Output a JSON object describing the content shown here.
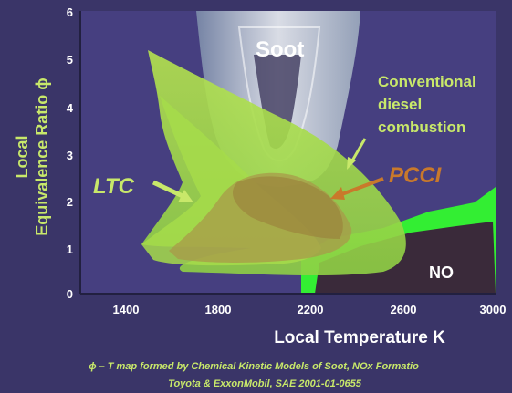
{
  "axes": {
    "xlabel": "Local Temperature K",
    "ylabel_line1": "Local",
    "ylabel_line2": "Equivalence Ratio ϕ",
    "x_ticks": [
      "1400",
      "1800",
      "2200",
      "2600",
      "3000"
    ],
    "y_ticks": [
      "0",
      "1",
      "2",
      "3",
      "4",
      "5",
      "6"
    ]
  },
  "regions": {
    "soot": "Soot",
    "no": "NO",
    "conventional_line1": "Conventional",
    "conventional_line2": "diesel",
    "conventional_line3": "combustion",
    "ltc": "LTC",
    "pcci": "PCCI"
  },
  "caption": {
    "line1": "ϕ – T map formed by Chemical Kinetic Models of Soot, NOx Formatio",
    "line2": "Toyota & ExxonMobil, SAE 2001-01-0655"
  },
  "colors": {
    "background": "#3a3568",
    "plot_area": "#4a4585",
    "label_yellow": "#c8e86a",
    "region_green": "#6fe03c",
    "bright_green": "#33ee33",
    "soot_gray": "#c9cfd4",
    "pcci_orange": "#c9792b"
  }
}
